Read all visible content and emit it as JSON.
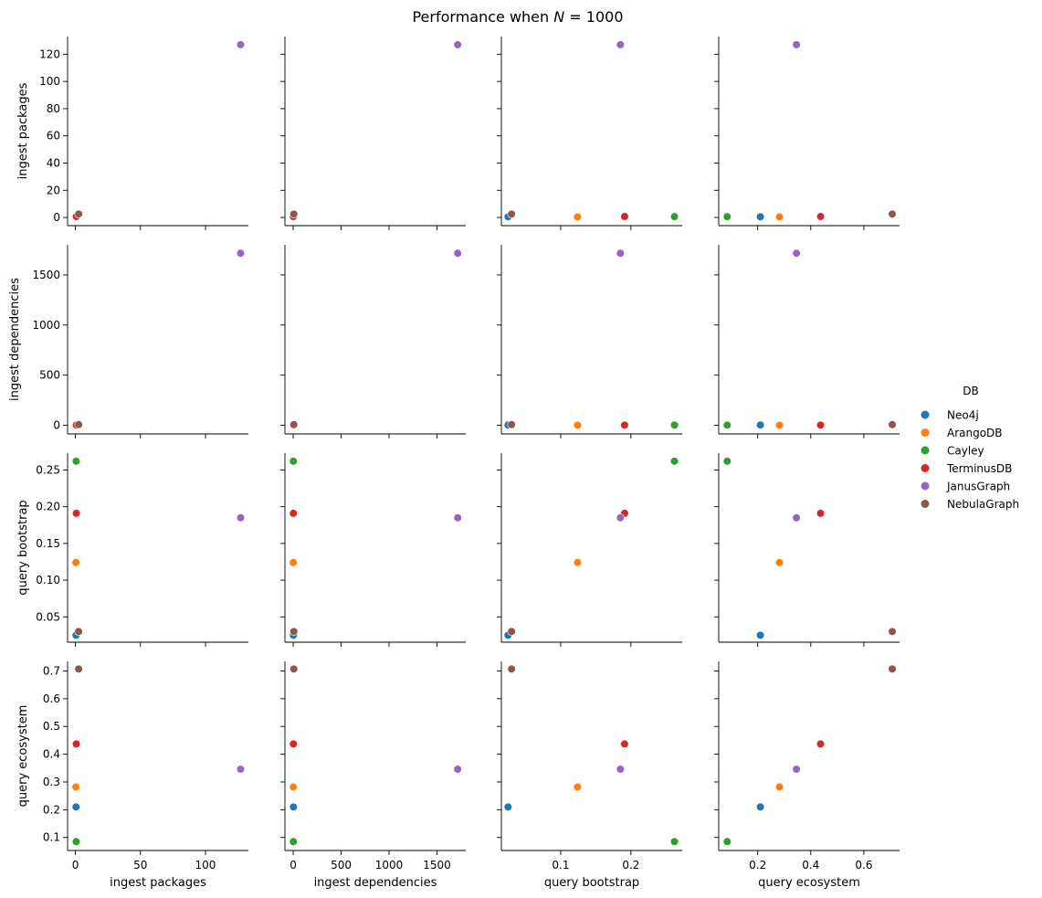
{
  "chart_data": {
    "type": "scatter",
    "title": "Performance when N = 1000",
    "title_parts": {
      "prefix": "Performance when ",
      "var": "N",
      "suffix": " = 1000"
    },
    "variables": [
      "ingest packages",
      "ingest dependencies",
      "query bootstrap",
      "query ecosystem"
    ],
    "axes": {
      "ingest packages": {
        "label": "ingest packages",
        "range": [
          -6,
          133
        ],
        "ticks": [
          0,
          50,
          100
        ],
        "tick_labels": [
          "0",
          "50",
          "100"
        ],
        "y_ticks": [
          0,
          20,
          40,
          60,
          80,
          100,
          120
        ],
        "y_tick_labels": [
          "0",
          "20",
          "40",
          "60",
          "80",
          "100",
          "120"
        ],
        "y_range": [
          -6,
          133
        ]
      },
      "ingest dependencies": {
        "label": "ingest dependencies",
        "range": [
          -86,
          1800
        ],
        "ticks": [
          0,
          500,
          1000,
          1500
        ],
        "tick_labels": [
          "0",
          "500",
          "1000",
          "1500"
        ],
        "y_ticks": [
          0,
          500,
          1000,
          1500
        ],
        "y_tick_labels": [
          "0",
          "500",
          "1000",
          "1500"
        ],
        "y_range": [
          -86,
          1800
        ]
      },
      "query bootstrap": {
        "label": "query bootstrap",
        "range": [
          0.0155,
          0.273
        ],
        "ticks": [
          0.1,
          0.2
        ],
        "tick_labels": [
          "0.1",
          "0.2"
        ],
        "y_ticks": [
          0.05,
          0.1,
          0.15,
          0.2,
          0.25
        ],
        "y_tick_labels": [
          "0.05",
          "0.10",
          "0.15",
          "0.20",
          "0.25"
        ],
        "y_range": [
          0.0155,
          0.273
        ]
      },
      "query ecosystem": {
        "label": "query ecosystem",
        "range": [
          0.053,
          0.7345
        ],
        "ticks": [
          0.2,
          0.4,
          0.6
        ],
        "tick_labels": [
          "0.2",
          "0.4",
          "0.6"
        ],
        "y_ticks": [
          0.1,
          0.2,
          0.3,
          0.4,
          0.5,
          0.6,
          0.7
        ],
        "y_tick_labels": [
          "0.1",
          "0.2",
          "0.3",
          "0.4",
          "0.5",
          "0.6",
          "0.7"
        ],
        "y_range": [
          0.053,
          0.7345
        ]
      }
    },
    "legend": {
      "title": "DB",
      "placement": "right"
    },
    "series": [
      {
        "name": "Neo4j",
        "color": "#1f77b4",
        "values": {
          "ingest packages": 0.5,
          "ingest dependencies": 3,
          "query bootstrap": 0.025,
          "query ecosystem": 0.21
        }
      },
      {
        "name": "ArangoDB",
        "color": "#ff7f0e",
        "values": {
          "ingest packages": 0.4,
          "ingest dependencies": 1,
          "query bootstrap": 0.124,
          "query ecosystem": 0.282
        }
      },
      {
        "name": "Cayley",
        "color": "#2ca02c",
        "values": {
          "ingest packages": 0.6,
          "ingest dependencies": 2,
          "query bootstrap": 0.262,
          "query ecosystem": 0.085
        }
      },
      {
        "name": "TerminusDB",
        "color": "#d62728",
        "values": {
          "ingest packages": 0.7,
          "ingest dependencies": 2,
          "query bootstrap": 0.191,
          "query ecosystem": 0.437
        }
      },
      {
        "name": "JanusGraph",
        "color": "#9467bd",
        "values": {
          "ingest packages": 127,
          "ingest dependencies": 1716,
          "query bootstrap": 0.185,
          "query ecosystem": 0.346
        }
      },
      {
        "name": "NebulaGraph",
        "color": "#8c564b",
        "values": {
          "ingest packages": 2.5,
          "ingest dependencies": 7,
          "query bootstrap": 0.03,
          "query ecosystem": 0.707
        }
      }
    ]
  }
}
